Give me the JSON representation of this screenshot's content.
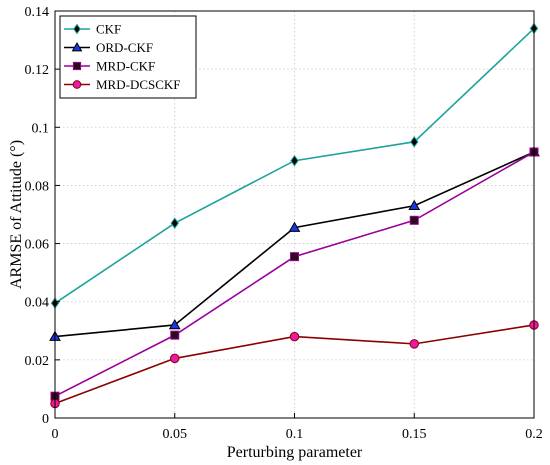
{
  "chart_data": {
    "type": "line",
    "xlabel": "Perturbing parameter",
    "ylabel": "ARMSE of Attitude (°)",
    "x": [
      0,
      0.05,
      0.1,
      0.15,
      0.2
    ],
    "xlim": [
      0,
      0.2
    ],
    "ylim": [
      0,
      0.14
    ],
    "xticks": [
      "0",
      "0.05",
      "0.1",
      "0.15",
      "0.2"
    ],
    "yticks": [
      "0",
      "0.02",
      "0.04",
      "0.06",
      "0.08",
      "0.1",
      "0.12",
      "0.14"
    ],
    "grid": true,
    "legend_position": "top-left",
    "series": [
      {
        "name": "CKF",
        "color": "#1ca39c",
        "marker": "diamond",
        "marker_fill": "#000000",
        "values": [
          0.0395,
          0.067,
          0.0885,
          0.095,
          0.134
        ]
      },
      {
        "name": "ORD-CKF",
        "color": "#000000",
        "marker": "triangle",
        "marker_fill": "#1a35e6",
        "values": [
          0.028,
          0.032,
          0.0655,
          0.073,
          0.0915
        ]
      },
      {
        "name": "MRD-CKF",
        "color": "#990099",
        "marker": "square",
        "marker_fill": "#2b0a1a",
        "values": [
          0.0075,
          0.0285,
          0.0555,
          0.068,
          0.0915
        ]
      },
      {
        "name": "MRD-DCSCKF",
        "color": "#8b0000",
        "marker": "circle",
        "marker_fill": "#e81aa8",
        "values": [
          0.005,
          0.0205,
          0.028,
          0.0255,
          0.032
        ]
      }
    ]
  }
}
